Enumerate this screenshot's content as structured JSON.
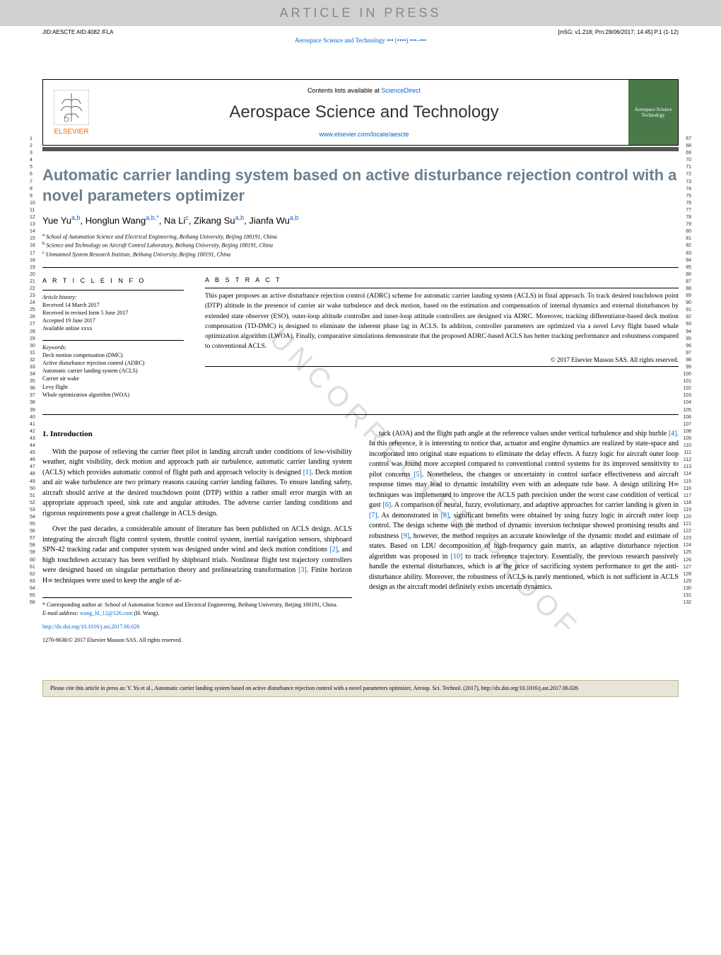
{
  "header_bar": "ARTICLE IN PRESS",
  "meta": {
    "jid": "JID:AESCTE  AID:4082 /FLA",
    "m5g": "[m5G; v1.218; Prn:28/06/2017; 14:45] P.1 (1-12)"
  },
  "journal_link_top": "Aerospace Science and Technology ••• (••••) •••–•••",
  "journal_header": {
    "contents": "Contents lists available at",
    "sciencedirect": "ScienceDirect",
    "name": "Aerospace Science and Technology",
    "url": "www.elsevier.com/locate/aescte",
    "elsevier": "ELSEVIER",
    "cover": "Aerospace Science Technology"
  },
  "title": "Automatic carrier landing system based on active disturbance rejection control with a novel parameters optimizer",
  "authors": [
    {
      "name": "Yue Yu",
      "aff": "a,b"
    },
    {
      "name": "Honglun Wang",
      "aff": "a,b,*"
    },
    {
      "name": "Na Li",
      "aff": "c"
    },
    {
      "name": "Zikang Su",
      "aff": "a,b"
    },
    {
      "name": "Jianfa Wu",
      "aff": "a,b"
    }
  ],
  "affiliations": [
    {
      "sup": "a",
      "text": "School of Automation Science and Electrical Engineering, Beihang University, Beijing 100191, China"
    },
    {
      "sup": "b",
      "text": "Science and Technology on Aircraft Control Laboratory, Beihang University, Beijing 100191, China"
    },
    {
      "sup": "c",
      "text": "Unmanned System Research Institute, Beihang University, Beijing 100191, China"
    }
  ],
  "article_info_header": "A R T I C L E   I N F O",
  "abstract_header": "A B S T R A C T",
  "history": {
    "label": "Article history:",
    "received": "Received 14 March 2017",
    "revised": "Received in revised form 5 June 2017",
    "accepted": "Accepted 19 June 2017",
    "online": "Available online xxxx"
  },
  "keywords": {
    "label": "Keywords:",
    "items": [
      "Deck motion compensation (DMC)",
      "Active disturbance rejection control (ADRC)",
      "Automatic carrier landing system (ACLS)",
      "Carrier air wake",
      "Levy flight",
      "Whale optimization algorithm (WOA)"
    ]
  },
  "abstract": "This paper proposes an active disturbance rejection control (ADRC) scheme for automatic carrier landing system (ACLS) in final approach. To track desired touchdown point (DTP) altitude in the presence of carrier air wake turbulence and deck motion, based on the estimation and compensation of internal dynamics and external disturbances by extended state observer (ESO), outer-loop altitude controller and inner-loop attitude controllers are designed via ADRC. Moreover, tracking differentiator-based deck motion compensation (TD-DMC) is designed to eliminate the inherent phase lag in ACLS. In addition, controller parameters are optimized via a novel Levy flight based whale optimization algorithm (LWOA). Finally, comparative simulations demonstrate that the proposed ADRC-based ACLS has better tracking performance and robustness compared to conventional ACLS.",
  "copyright": "© 2017 Elsevier Masson SAS. All rights reserved.",
  "intro_heading": "1. Introduction",
  "para1": "With the purpose of relieving the carrier fleet pilot in landing aircraft under conditions of low-visibility weather, night visibility, deck motion and approach path air turbulence, automatic carrier landing system (ACLS) which provides automatic control of flight path and approach velocity is designed [1]. Deck motion and air wake turbulence are two primary reasons causing carrier landing failures. To ensure landing safety, aircraft should arrive at the desired touchdown point (DTP) within a rather small error margin with an appropriate approach speed, sink rate and angular attitudes. The adverse carrier landing conditions and rigorous requirements pose a great challenge in ACLS design.",
  "para2": "Over the past decades, a considerable amount of literature has been published on ACLS design. ACLS integrating the aircraft flight control system, throttle control system, inertial navigation sensors, shipboard SPN-42 tracking radar and computer system was designed under wind and deck motion conditions [2], and high touchdown accuracy has been verified by shipboard trials. Nonlinear flight test trajectory controllers were designed based on singular perturbation theory and prelinearizing transformation [3]. Finite horizon H∞ techniques were used to keep the angle of at-",
  "para3": "tack (AOA) and the flight path angle at the reference values under vertical turbulence and ship burble [4]. In this reference, it is interesting to notice that, actuator and engine dynamics are realized by state-space and incorporated into original state equations to eliminate the delay effects. A fuzzy logic for aircraft outer loop control was found more accepted compared to conventional control systems for its improved sensitivity to pilot concerns [5]. Nonetheless, the changes or uncertainty in control surface effectiveness and aircraft response times may lead to dynamic instability even with an adequate rule base. A design utilizing H∞ techniques was implemented to improve the ACLS path precision under the worst case condition of vertical gust [6]. A comparison of neural, fuzzy, evolutionary, and adaptive approaches for carrier landing is given in [7]. As demonstrated in [8], significant benefits were obtained by using fuzzy logic in aircraft outer loop control. The design scheme with the method of dynamic inversion technique showed promising results and robustness [9], however, the method requires an accurate knowledge of the dynamic model and estimate of states. Based on LDU decomposition of high-frequency gain matrix, an adaptive disturbance rejection algorithm was proposed in [10] to track reference trajectory. Essentially, the previous research passively handle the external disturbances, which is at the price of sacrificing system performance to get the anti-disturbance ability. Moreover, the robustness of ACLS is rarely mentioned, which is not sufficient in ACLS design as the aircraft model definitely exists uncertain dynamics.",
  "footnote": {
    "corr": "* Corresponding author at: School of Automation Science and Electrical Engineering, Beihang University, Beijing 100191, China.",
    "email_label": "E-mail address:",
    "email": "wang_hl_12@126.com",
    "email_name": "(H. Wang)."
  },
  "doi": "http://dx.doi.org/10.1016/j.ast.2017.06.026",
  "issn": "1270-9638/© 2017 Elsevier Masson SAS. All rights reserved.",
  "cite_box": "Please cite this article in press as: Y. Yu et al., Automatic carrier landing system based on active disturbance rejection control with a novel parameters optimizer, Aerosp. Sci. Technol. (2017), http://dx.doi.org/10.1016/j.ast.2017.06.026",
  "watermark": "UNCORRECTED PROOF",
  "line_numbers": {
    "left_start": 1,
    "left_end": 66,
    "right_start": 67,
    "right_end": 132
  },
  "colors": {
    "header_bg": "#d0d0d0",
    "title": "#6b7f8f",
    "link": "#0066cc",
    "elsevier": "#ff6600",
    "cite_bg": "#e8e4d8",
    "cite_border": "#c0b890",
    "cover_bg": "#4a7a4a"
  }
}
